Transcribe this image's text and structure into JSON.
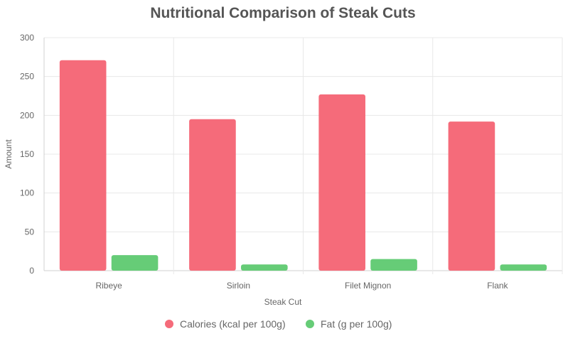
{
  "chart_data": {
    "type": "bar",
    "title": "Nutritional Comparison of Steak Cuts",
    "xlabel": "Steak Cut",
    "ylabel": "Amount",
    "categories": [
      "Ribeye",
      "Sirloin",
      "Filet Mignon",
      "Flank"
    ],
    "series": [
      {
        "name": "Calories (kcal per 100g)",
        "values": [
          271,
          195,
          227,
          192
        ],
        "color": "#f56b7a"
      },
      {
        "name": "Fat (g per 100g)",
        "values": [
          20,
          8,
          15,
          8
        ],
        "color": "#66cc77"
      }
    ],
    "ylim": [
      0,
      300
    ],
    "yticks": [
      0,
      50,
      100,
      150,
      200,
      250,
      300
    ],
    "grid": true,
    "legend_position": "bottom"
  }
}
